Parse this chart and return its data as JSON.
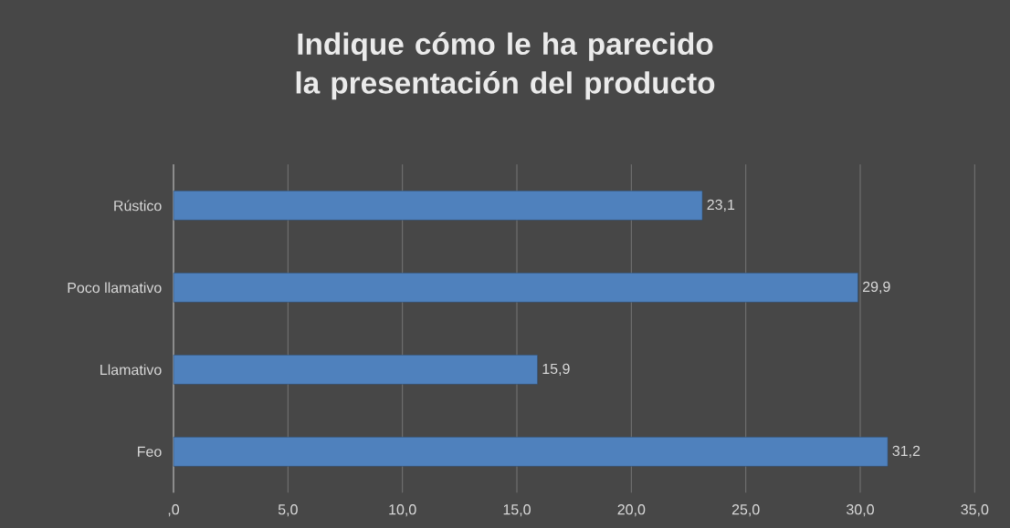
{
  "chart_data": {
    "type": "bar",
    "orientation": "horizontal",
    "title": "Indique cómo le ha parecido la presentación del producto",
    "categories": [
      "Rústico",
      "Poco llamativo",
      "Llamativo",
      "Feo"
    ],
    "values": [
      23.1,
      29.9,
      15.9,
      31.2
    ],
    "value_labels": [
      "23,1",
      "29,9",
      "15,9",
      "31,2"
    ],
    "color": "#4f81bd",
    "xlim": [
      0,
      35
    ],
    "xticks": [
      {
        "value": 0,
        "label": ",0"
      },
      {
        "value": 5,
        "label": "5,0"
      },
      {
        "value": 10,
        "label": "10,0"
      },
      {
        "value": 15,
        "label": "15,0"
      },
      {
        "value": 20,
        "label": "20,0"
      },
      {
        "value": 25,
        "label": "25,0"
      },
      {
        "value": 30,
        "label": "30,0"
      },
      {
        "value": 35,
        "label": "35,0"
      }
    ],
    "grid": "x"
  }
}
